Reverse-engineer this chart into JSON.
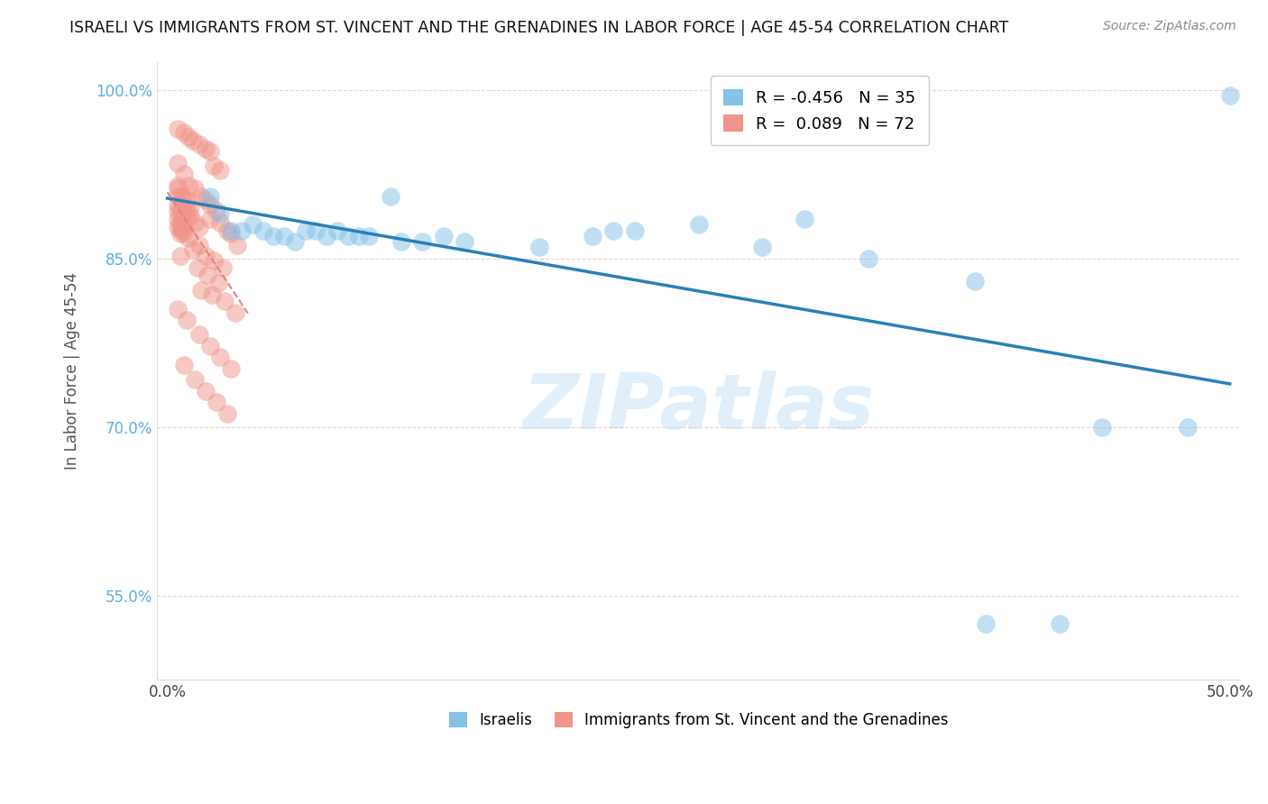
{
  "title": "ISRAELI VS IMMIGRANTS FROM ST. VINCENT AND THE GRENADINES IN LABOR FORCE | AGE 45-54 CORRELATION CHART",
  "source": "Source: ZipAtlas.com",
  "ylabel": "In Labor Force | Age 45-54",
  "watermark": "ZIPatlas",
  "xlim": [
    -0.005,
    0.505
  ],
  "ylim": [
    0.475,
    1.025
  ],
  "legend_blue_r": "-0.456",
  "legend_blue_n": "35",
  "legend_pink_r": "0.089",
  "legend_pink_n": "72",
  "blue_color": "#85C1E9",
  "pink_color": "#F1948A",
  "blue_line_color": "#2980B9",
  "pink_line_color": "#D98880",
  "israelis_x": [
    0.02,
    0.105,
    0.21,
    0.3,
    0.5,
    0.04,
    0.08,
    0.14,
    0.2,
    0.25,
    0.03,
    0.06,
    0.12,
    0.175,
    0.22,
    0.05,
    0.07,
    0.09,
    0.11,
    0.13,
    0.28,
    0.33,
    0.38,
    0.44,
    0.48,
    0.025,
    0.035,
    0.045,
    0.055,
    0.065,
    0.075,
    0.085,
    0.095,
    0.385,
    0.42
  ],
  "israelis_y": [
    0.905,
    0.905,
    0.875,
    0.885,
    0.995,
    0.88,
    0.875,
    0.865,
    0.87,
    0.88,
    0.875,
    0.865,
    0.865,
    0.86,
    0.875,
    0.87,
    0.875,
    0.87,
    0.865,
    0.87,
    0.86,
    0.85,
    0.83,
    0.7,
    0.7,
    0.89,
    0.875,
    0.875,
    0.87,
    0.875,
    0.87,
    0.87,
    0.87,
    0.525,
    0.525
  ],
  "svg_x": [
    0.005,
    0.008,
    0.01,
    0.012,
    0.015,
    0.018,
    0.02,
    0.022,
    0.025,
    0.005,
    0.008,
    0.01,
    0.013,
    0.016,
    0.018,
    0.02,
    0.023,
    0.005,
    0.007,
    0.009,
    0.011,
    0.013,
    0.015,
    0.005,
    0.007,
    0.009,
    0.011,
    0.005,
    0.007,
    0.009,
    0.005,
    0.006,
    0.007,
    0.008,
    0.005,
    0.006,
    0.007,
    0.005,
    0.006,
    0.005,
    0.006,
    0.028,
    0.025,
    0.02,
    0.03,
    0.033,
    0.015,
    0.01,
    0.008,
    0.012,
    0.018,
    0.022,
    0.026,
    0.014,
    0.019,
    0.024,
    0.006,
    0.016,
    0.021,
    0.027,
    0.032,
    0.005,
    0.009,
    0.015,
    0.02,
    0.025,
    0.03,
    0.008,
    0.013,
    0.018,
    0.023,
    0.028
  ],
  "svg_y": [
    0.965,
    0.962,
    0.958,
    0.955,
    0.952,
    0.948,
    0.945,
    0.932,
    0.928,
    0.935,
    0.925,
    0.915,
    0.912,
    0.905,
    0.902,
    0.898,
    0.892,
    0.915,
    0.905,
    0.902,
    0.895,
    0.882,
    0.878,
    0.912,
    0.902,
    0.895,
    0.888,
    0.905,
    0.895,
    0.888,
    0.898,
    0.892,
    0.885,
    0.878,
    0.892,
    0.882,
    0.875,
    0.885,
    0.878,
    0.878,
    0.872,
    0.875,
    0.882,
    0.885,
    0.872,
    0.862,
    0.862,
    0.868,
    0.872,
    0.858,
    0.852,
    0.848,
    0.842,
    0.842,
    0.835,
    0.828,
    0.852,
    0.822,
    0.818,
    0.812,
    0.802,
    0.805,
    0.795,
    0.782,
    0.772,
    0.762,
    0.752,
    0.755,
    0.742,
    0.732,
    0.722,
    0.712
  ]
}
